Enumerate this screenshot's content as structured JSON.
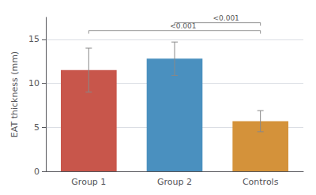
{
  "chart_data": {
    "type": "bar",
    "categories": [
      "Group 1",
      "Group 2",
      "Controls"
    ],
    "values": [
      11.5,
      12.8,
      5.7
    ],
    "errors": [
      2.5,
      1.9,
      1.2
    ],
    "colors": [
      "#c8564b",
      "#4a90bf",
      "#d4923a"
    ],
    "ylabel": "EAT thickness (mm)",
    "ylim": [
      0,
      17.5
    ],
    "yticks": [
      0,
      5,
      10,
      15
    ],
    "grid": true,
    "annotations": [
      {
        "x1": "Group 1",
        "x2": "Controls",
        "y": 16.0,
        "label": "<0.001"
      },
      {
        "x1": "Group 2",
        "x2": "Controls",
        "y": 16.9,
        "label": "<0.001"
      }
    ]
  }
}
